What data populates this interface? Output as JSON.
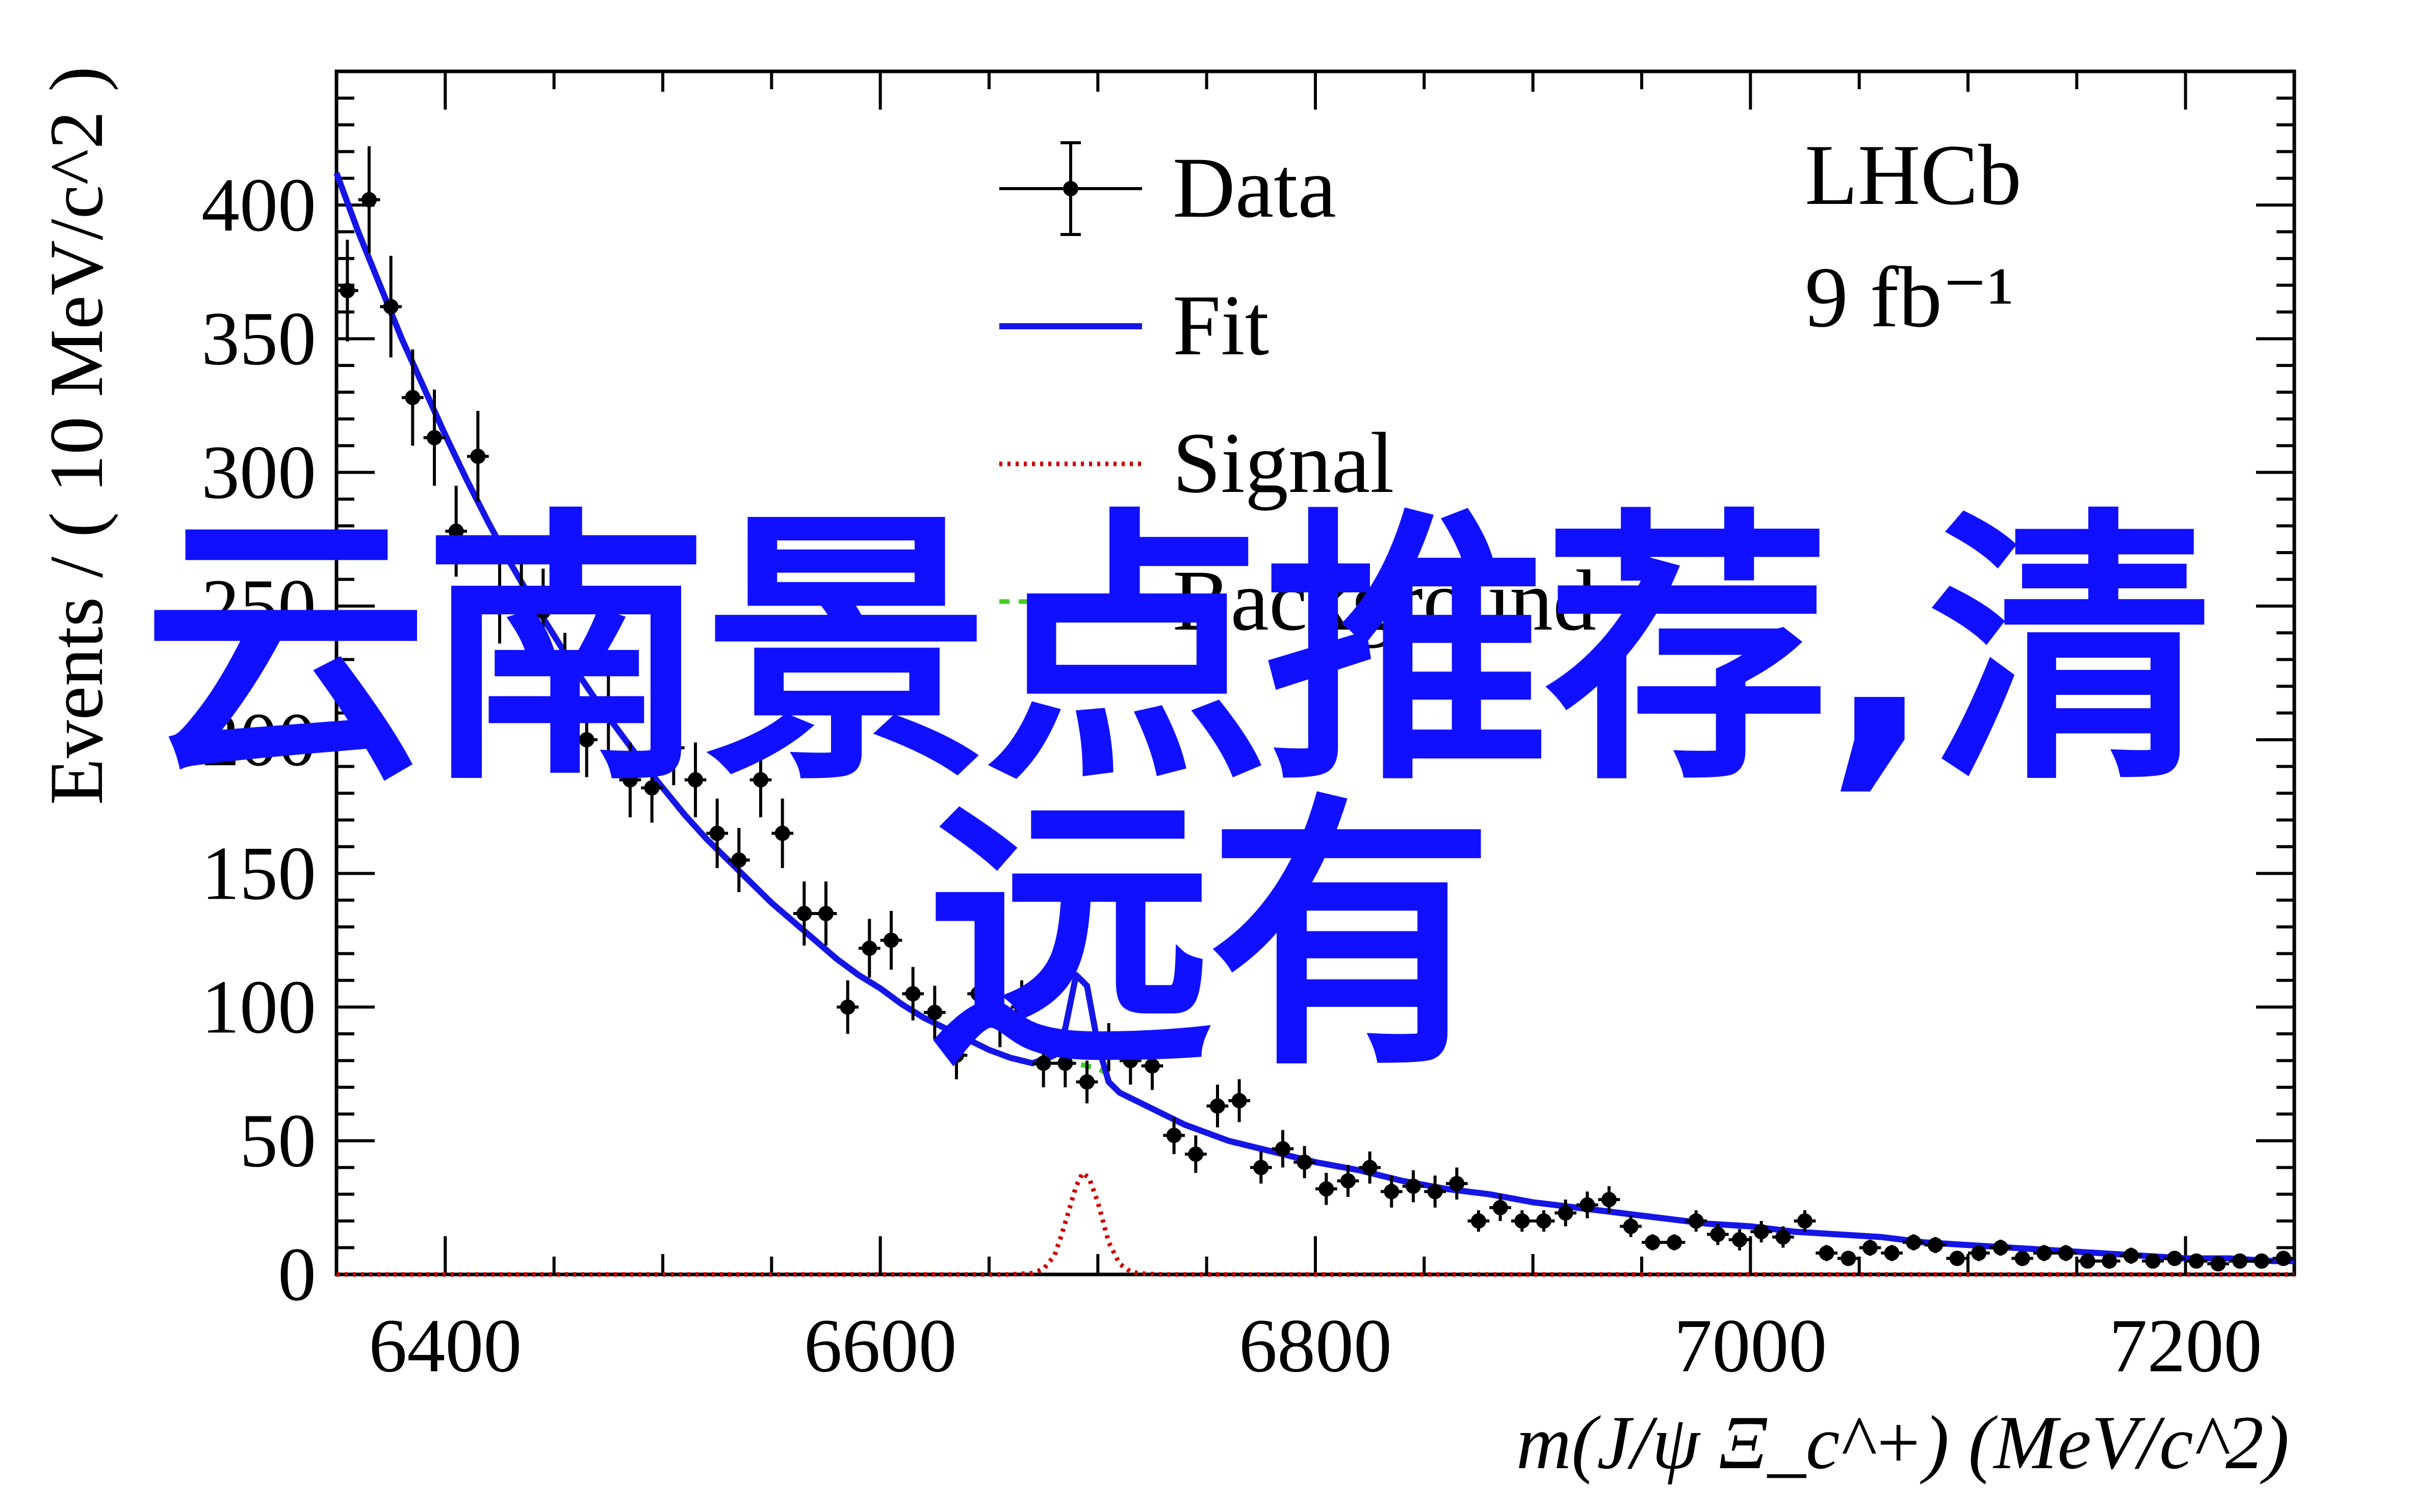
{
  "chart_data": {
    "type": "line",
    "xlabel": "m(J/ψ Ξ_c^+) (MeV/c^2)",
    "ylabel": "Events / ( 10 MeV/c^2 )",
    "xlim": [
      6350,
      7250
    ],
    "ylim": [
      0,
      450
    ],
    "xticks": [
      6400,
      6600,
      6800,
      7000,
      7200
    ],
    "yticks": [
      0,
      50,
      100,
      150,
      200,
      250,
      300,
      350,
      400
    ],
    "experiment_label": "LHCb",
    "luminosity_label": "9 fb⁻¹",
    "legend": {
      "placement": "top-center",
      "entries": [
        {
          "label": "Data",
          "style": "errorbar",
          "color": "#000000"
        },
        {
          "label": "Fit",
          "style": "solid",
          "color": "#1515e6"
        },
        {
          "label": "Signal",
          "style": "dotted",
          "color": "#cc0000"
        },
        {
          "label": "Background",
          "style": "dashed",
          "color": "#44cc22"
        }
      ]
    },
    "data": {
      "name": "Data",
      "x": [
        6355,
        6365,
        6375,
        6385,
        6395,
        6405,
        6415,
        6425,
        6435,
        6445,
        6455,
        6465,
        6475,
        6485,
        6495,
        6505,
        6515,
        6525,
        6535,
        6545,
        6555,
        6565,
        6575,
        6585,
        6595,
        6605,
        6615,
        6625,
        6635,
        6645,
        6655,
        6665,
        6675,
        6685,
        6695,
        6705,
        6715,
        6725,
        6735,
        6745,
        6755,
        6765,
        6775,
        6785,
        6795,
        6805,
        6815,
        6825,
        6835,
        6845,
        6855,
        6865,
        6875,
        6885,
        6895,
        6905,
        6915,
        6925,
        6935,
        6945,
        6955,
        6965,
        6975,
        6985,
        6995,
        7005,
        7015,
        7025,
        7035,
        7045,
        7055,
        7065,
        7075,
        7085,
        7095,
        7105,
        7115,
        7125,
        7135,
        7145,
        7155,
        7165,
        7175,
        7185,
        7195,
        7205,
        7215,
        7225,
        7235,
        7245
      ],
      "y": [
        368,
        402,
        362,
        328,
        313,
        278,
        306,
        252,
        255,
        248,
        225,
        200,
        210,
        185,
        182,
        197,
        185,
        165,
        155,
        185,
        165,
        135,
        135,
        100,
        122,
        125,
        105,
        98,
        82,
        105,
        95,
        100,
        79,
        79,
        72,
        85,
        80,
        78,
        52,
        45,
        63,
        65,
        40,
        47,
        42,
        32,
        35,
        40,
        31,
        33,
        31,
        34,
        20,
        25,
        20,
        20,
        23,
        26,
        28,
        18,
        12,
        12,
        20,
        15,
        13,
        16,
        14,
        20,
        8,
        6,
        10,
        8,
        12,
        11,
        6,
        8,
        10,
        6,
        8,
        8,
        5,
        5,
        7,
        5,
        6,
        5,
        4,
        5,
        5,
        6
      ],
      "yerr": [
        19,
        20,
        19,
        18,
        18,
        17,
        17,
        16,
        16,
        16,
        15,
        14,
        14,
        14,
        13,
        14,
        14,
        13,
        12,
        14,
        13,
        12,
        12,
        10,
        11,
        11,
        10,
        10,
        9,
        10,
        10,
        10,
        9,
        9,
        8,
        9,
        9,
        9,
        7,
        7,
        8,
        8,
        6,
        7,
        6,
        6,
        6,
        6,
        6,
        6,
        6,
        6,
        4,
        5,
        4,
        4,
        5,
        5,
        5,
        4,
        3,
        3,
        4,
        4,
        4,
        4,
        4,
        4,
        3,
        2,
        3,
        3,
        3,
        3,
        2,
        3,
        3,
        2,
        3,
        3,
        2,
        2,
        3,
        2,
        2,
        2,
        2,
        2,
        2,
        2
      ]
    },
    "fit": {
      "name": "Fit",
      "x": [
        6350,
        6360,
        6370,
        6380,
        6390,
        6400,
        6410,
        6420,
        6430,
        6440,
        6450,
        6460,
        6470,
        6480,
        6490,
        6500,
        6510,
        6520,
        6530,
        6540,
        6550,
        6560,
        6570,
        6580,
        6590,
        6600,
        6610,
        6620,
        6630,
        6640,
        6650,
        6660,
        6670,
        6680,
        6685,
        6690,
        6695,
        6700,
        6705,
        6710,
        6720,
        6730,
        6740,
        6750,
        6760,
        6780,
        6800,
        6820,
        6840,
        6860,
        6880,
        6900,
        6920,
        6940,
        6960,
        6980,
        7000,
        7020,
        7040,
        7060,
        7080,
        7100,
        7120,
        7140,
        7160,
        7180,
        7200,
        7220,
        7240,
        7250
      ],
      "y": [
        412,
        390,
        370,
        350,
        332,
        314,
        297,
        281,
        266,
        252,
        239,
        226,
        214,
        203,
        192,
        182,
        172,
        163,
        155,
        147,
        139,
        132,
        125,
        118,
        112,
        107,
        101,
        96,
        92,
        88,
        84,
        81,
        79,
        82,
        92,
        112,
        108,
        86,
        72,
        68,
        64,
        60,
        56,
        53,
        50,
        46,
        42,
        39,
        35,
        32,
        30,
        27,
        25,
        23,
        21,
        19,
        18,
        16,
        15,
        14,
        12,
        11,
        10,
        9,
        8,
        7,
        6,
        6,
        5,
        5
      ]
    },
    "signal": {
      "name": "Signal",
      "x": [
        6350,
        6660,
        6670,
        6675,
        6680,
        6683,
        6686,
        6690,
        6693,
        6696,
        6700,
        6705,
        6710,
        6715,
        6720,
        6730,
        7250
      ],
      "y": [
        0,
        0,
        0.5,
        2,
        7,
        14,
        22,
        33,
        38,
        36,
        27,
        12,
        4,
        1,
        0.3,
        0,
        0
      ]
    },
    "background": {
      "name": "Background",
      "x": [
        6675,
        6680,
        6685,
        6690,
        6695,
        6700,
        6705
      ],
      "y": [
        82,
        81,
        80,
        79,
        78,
        77,
        75
      ]
    }
  },
  "overlay_text": {
    "line1": "云南景点推荐,清",
    "line2": "远有"
  }
}
